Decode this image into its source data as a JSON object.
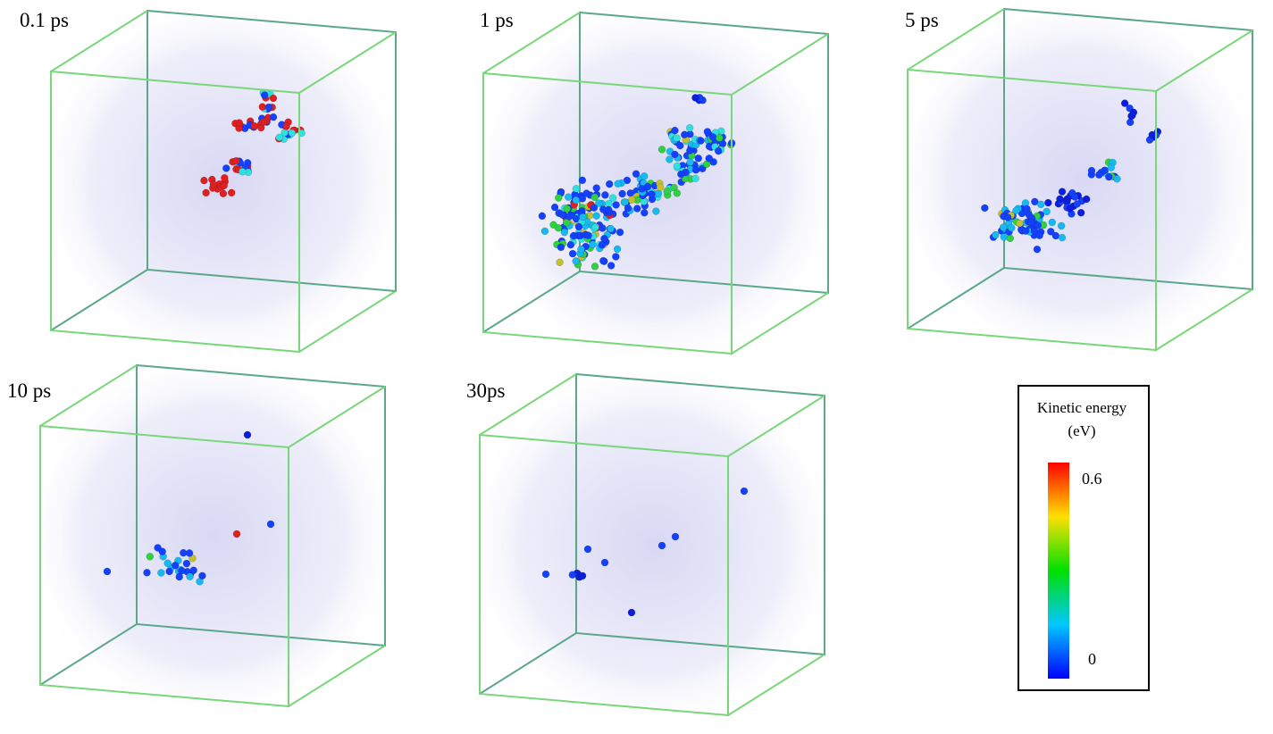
{
  "panels": [
    {
      "label": "0.1 ps"
    },
    {
      "label": "1 ps"
    },
    {
      "label": "5 ps"
    },
    {
      "label": "10 ps"
    },
    {
      "label": "30ps"
    }
  ],
  "legend": {
    "title": "Kinetic energy (eV)",
    "max": 0.6,
    "min": 0
  }
}
